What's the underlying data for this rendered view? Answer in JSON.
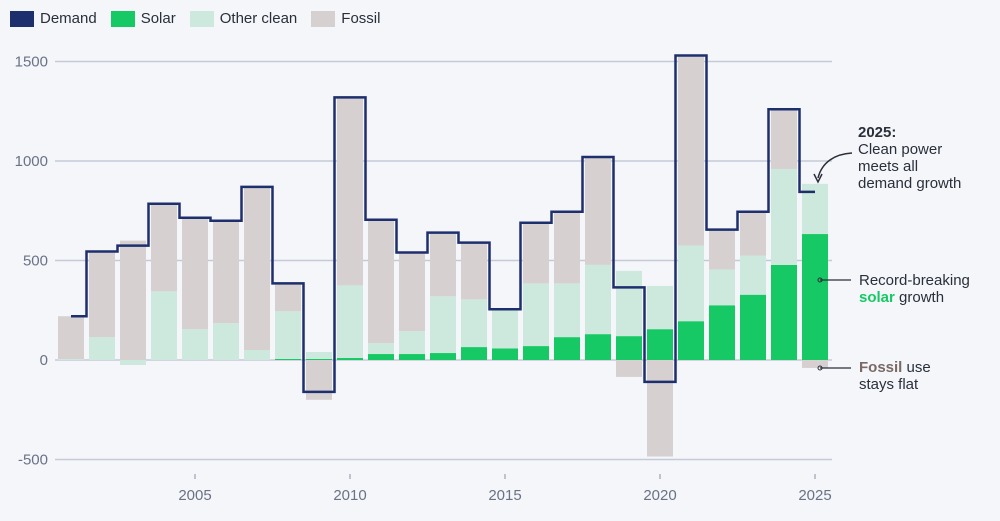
{
  "colors": {
    "demand": "#1e2f6e",
    "solar": "#17c964",
    "other_clean": "#cde8dc",
    "fossil": "#d6d1d0",
    "grid": "#c5cad6",
    "fossil_text": "#7a6a64"
  },
  "legend": [
    {
      "key": "demand",
      "label": "Demand"
    },
    {
      "key": "solar",
      "label": "Solar"
    },
    {
      "key": "other_clean",
      "label": "Other clean"
    },
    {
      "key": "fossil",
      "label": "Fossil"
    }
  ],
  "annotations": {
    "a2025_title": "2025:",
    "a2025_text": [
      "Clean power",
      "meets all",
      "demand growth"
    ],
    "solar_pre": "Record-breaking",
    "solar_word": "solar",
    "solar_post": "growth",
    "fossil_word": "Fossil",
    "fossil_post": "use",
    "fossil_line2": "stays flat"
  },
  "chart_data": {
    "type": "bar",
    "stacked": true,
    "title": "",
    "xlabel": "",
    "ylabel": "",
    "ylim": [
      -500,
      1500
    ],
    "yticks": [
      -500,
      0,
      500,
      1000,
      1500
    ],
    "xticks": [
      2005,
      2010,
      2015,
      2020,
      2025
    ],
    "grid": true,
    "legend_position": "top-left",
    "years": [
      2001,
      2002,
      2003,
      2004,
      2005,
      2006,
      2007,
      2008,
      2009,
      2010,
      2011,
      2012,
      2013,
      2014,
      2015,
      2016,
      2017,
      2018,
      2019,
      2020,
      2021,
      2022,
      2023,
      2024,
      2025
    ],
    "series": [
      {
        "name": "Solar",
        "key": "solar",
        "values": [
          0,
          0,
          0,
          0,
          0,
          0,
          0,
          5,
          5,
          10,
          30,
          30,
          35,
          65,
          58,
          70,
          115,
          130,
          120,
          155,
          195,
          275,
          328,
          478,
          633
        ]
      },
      {
        "name": "Other clean",
        "key": "other_clean",
        "values": [
          5,
          115,
          -25,
          345,
          155,
          185,
          50,
          240,
          35,
          365,
          55,
          115,
          285,
          240,
          192,
          315,
          270,
          348,
          328,
          217,
          380,
          180,
          197,
          482,
          252
        ]
      },
      {
        "name": "Fossil",
        "key": "fossil",
        "values": [
          215,
          430,
          600,
          435,
          560,
          515,
          820,
          140,
          -200,
          940,
          620,
          395,
          315,
          285,
          0,
          305,
          355,
          542,
          -85,
          -485,
          950,
          200,
          220,
          295,
          -40
        ]
      },
      {
        "name": "Demand",
        "key": "demand",
        "type": "step-line",
        "values": [
          220,
          545,
          575,
          785,
          715,
          700,
          870,
          385,
          -160,
          1320,
          705,
          540,
          640,
          590,
          255,
          690,
          745,
          1020,
          365,
          -110,
          1530,
          655,
          745,
          1260,
          845
        ]
      }
    ]
  }
}
